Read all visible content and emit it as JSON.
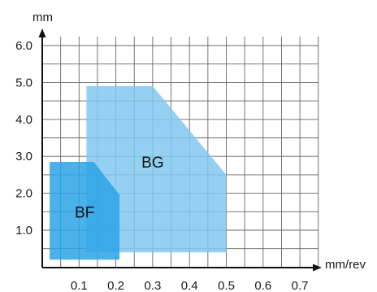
{
  "chart_data": {
    "type": "area",
    "title": "",
    "xlabel": "mm/rev",
    "ylabel": "mm",
    "xlim": [
      0,
      0.75
    ],
    "ylim": [
      -0.2,
      6.2
    ],
    "x_ticks": [
      0.1,
      0.2,
      0.3,
      0.4,
      0.5,
      0.6,
      0.7
    ],
    "x_tick_labels": [
      "0.1",
      "0.2",
      "0.3",
      "0.4",
      "0.5",
      "0.6",
      "0.7"
    ],
    "y_ticks": [
      1.0,
      2.0,
      3.0,
      4.0,
      5.0,
      6.0
    ],
    "y_tick_labels": [
      "1.0",
      "2.0",
      "3.0",
      "4.0",
      "5.0",
      "6.0"
    ],
    "grid": true,
    "series": [
      {
        "name": "BG",
        "color": "#80c8ee",
        "opacity": 0.85,
        "points": [
          [
            0.12,
            0.4
          ],
          [
            0.12,
            4.9
          ],
          [
            0.3,
            4.9
          ],
          [
            0.5,
            2.5
          ],
          [
            0.5,
            0.4
          ]
        ]
      },
      {
        "name": "BF",
        "color": "#2ba3e6",
        "opacity": 0.85,
        "points": [
          [
            0.02,
            0.2
          ],
          [
            0.02,
            2.85
          ],
          [
            0.14,
            2.85
          ],
          [
            0.21,
            1.95
          ],
          [
            0.21,
            0.2
          ]
        ]
      }
    ],
    "annotations": [
      {
        "text": "BG",
        "x": 0.3,
        "y": 2.85
      },
      {
        "text": "BF",
        "x": 0.115,
        "y": 1.5
      }
    ]
  }
}
